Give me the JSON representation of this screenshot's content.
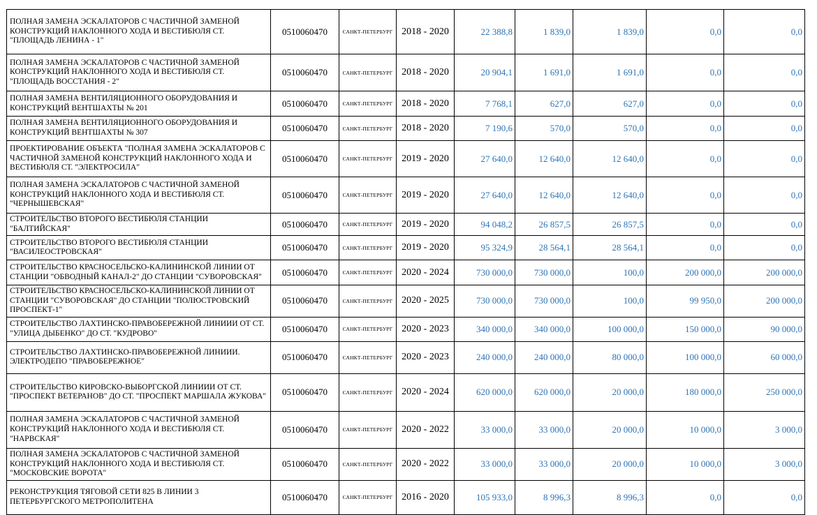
{
  "table": {
    "number_color": "#2E74B5",
    "rows": [
      {
        "name": "ПОЛНАЯ ЗАМЕНА ЭСКАЛАТОРОВ С ЧАСТИЧНОЙ ЗАМЕНОЙ КОНСТРУКЦИЙ НАКЛОННОГО ХОДА И ВЕСТИБЮЛЯ СТ. \"ПЛОЩАДЬ ЛЕНИНА - 1\"",
        "code": "0510060470",
        "city": "САНКТ-ПЕТЕРБУРГ",
        "years": "2018 - 2020",
        "values": [
          "22 388,8",
          "1 839,0",
          "1 839,0",
          "0,0",
          "0,0"
        ]
      },
      {
        "name": "ПОЛНАЯ ЗАМЕНА ЭСКАЛАТОРОВ С ЧАСТИЧНОЙ ЗАМЕНОЙ КОНСТРУКЦИЙ НАКЛОННОГО ХОДА И ВЕСТИБЮЛЯ СТ. \"ПЛОЩАДЬ ВОССТАНИЯ - 2\"",
        "code": "0510060470",
        "city": "САНКТ-ПЕТЕРБУРГ",
        "years": "2018 - 2020",
        "values": [
          "20 904,1",
          "1 691,0",
          "1 691,0",
          "0,0",
          "0,0"
        ]
      },
      {
        "name": "ПОЛНАЯ ЗАМЕНА ВЕНТИЛЯЦИОННОГО ОБОРУДОВАНИЯ И КОНСТРУКЦИЙ ВЕНТШАХТЫ № 201",
        "code": "0510060470",
        "city": "САНКТ-ПЕТЕРБУРГ",
        "years": "2018 - 2020",
        "values": [
          "7 768,1",
          "627,0",
          "627,0",
          "0,0",
          "0,0"
        ]
      },
      {
        "name": "ПОЛНАЯ ЗАМЕНА ВЕНТИЛЯЦИОННОГО ОБОРУДОВАНИЯ И КОНСТРУКЦИЙ ВЕНТШАХТЫ № 307",
        "code": "0510060470",
        "city": "САНКТ-ПЕТЕРБУРГ",
        "years": "2018 - 2020",
        "values": [
          "7 190,6",
          "570,0",
          "570,0",
          "0,0",
          "0,0"
        ]
      },
      {
        "name": "ПРОЕКТИРОВАНИЕ ОБЪЕКТА \"ПОЛНАЯ ЗАМЕНА ЭСКАЛАТОРОВ С ЧАСТИЧНОЙ ЗАМЕНОЙ КОНСТРУКЦИЙ НАКЛОННОГО ХОДА И ВЕСТИБЮЛЯ СТ. \"ЭЛЕКТРОСИЛА\"",
        "code": "0510060470",
        "city": "САНКТ-ПЕТЕРБУРГ",
        "years": "2019 - 2020",
        "values": [
          "27 640,0",
          "12 640,0",
          "12 640,0",
          "0,0",
          "0,0"
        ]
      },
      {
        "name": "ПОЛНАЯ ЗАМЕНА ЭСКАЛАТОРОВ С ЧАСТИЧНОЙ ЗАМЕНОЙ КОНСТРУКЦИЙ НАКЛОННОГО ХОДА И ВЕСТИБЮЛЯ СТ. \"ЧЕРНЫШЕВСКАЯ\"",
        "code": "0510060470",
        "city": "САНКТ-ПЕТЕРБУРГ",
        "years": "2019 - 2020",
        "values": [
          "27 640,0",
          "12 640,0",
          "12 640,0",
          "0,0",
          "0,0"
        ]
      },
      {
        "name": "СТРОИТЕЛЬСТВО ВТОРОГО ВЕСТИБЮЛЯ СТАНЦИИ \"БАЛТИЙСКАЯ\"",
        "code": "0510060470",
        "city": "САНКТ-ПЕТЕРБУРГ",
        "years": "2019 - 2020",
        "values": [
          "94 048,2",
          "26 857,5",
          "26 857,5",
          "0,0",
          "0,0"
        ]
      },
      {
        "name": "СТРОИТЕЛЬСТВО ВТОРОГО ВЕСТИБЮЛЯ СТАНЦИИ \"ВАСИЛЕОСТРОВСКАЯ\"",
        "code": "0510060470",
        "city": "САНКТ-ПЕТЕРБУРГ",
        "years": "2019 - 2020",
        "values": [
          "95 324,9",
          "28 564,1",
          "28 564,1",
          "0,0",
          "0,0"
        ]
      },
      {
        "name": "СТРОИТЕЛЬСТВО КРАСНОСЕЛЬСКО-КАЛИНИНСКОЙ ЛИНИИ ОТ СТАНЦИИ \"ОБВОДНЫЙ КАНАЛ-2\" ДО СТАНЦИИ \"СУВОРОВСКАЯ\"",
        "code": "0510060470",
        "city": "САНКТ-ПЕТЕРБУРГ",
        "years": "2020 - 2024",
        "values": [
          "730 000,0",
          "730 000,0",
          "100,0",
          "200 000,0",
          "200 000,0"
        ]
      },
      {
        "name": "СТРОИТЕЛЬСТВО КРАСНОСЕЛЬСКО-КАЛИНИНСКОЙ ЛИНИИ ОТ СТАНЦИИ \"СУВОРОВСКАЯ\" ДО СТАНЦИИ \"ПОЛЮСТРОВСКИЙ ПРОСПЕКТ-1\"",
        "code": "0510060470",
        "city": "САНКТ-ПЕТЕРБУРГ",
        "years": "2020 - 2025",
        "values": [
          "730 000,0",
          "730 000,0",
          "100,0",
          "99 950,0",
          "200 000,0"
        ]
      },
      {
        "name": "СТРОИТЕЛЬСТВО ЛАХТИНСКО-ПРАВОБЕРЕЖНОЙ ЛИНИИИ ОТ СТ. \"УЛИЦА ДЫБЕНКО\" ДО СТ. \"КУДРОВО\"",
        "code": "0510060470",
        "city": "САНКТ-ПЕТЕРБУРГ",
        "years": "2020 - 2023",
        "values": [
          "340 000,0",
          "340 000,0",
          "100 000,0",
          "150 000,0",
          "90 000,0"
        ]
      },
      {
        "name": "СТРОИТЕЛЬСТВО ЛАХТИНСКО-ПРАВОБЕРЕЖНОЙ ЛИНИИИ. ЭЛЕКТРОДЕПО \"ПРАВОБЕРЕЖНОЕ\"",
        "code": "0510060470",
        "city": "САНКТ-ПЕТЕРБУРГ",
        "years": "2020 - 2023",
        "values": [
          "240 000,0",
          "240 000,0",
          "80 000,0",
          "100 000,0",
          "60 000,0"
        ]
      },
      {
        "name": "СТРОИТЕЛЬСТВО КИРОВСКО-ВЫБОРГСКОЙ ЛИНИИИ ОТ СТ. \"ПРОСПЕКТ ВЕТЕРАНОВ\" ДО СТ. \"ПРОСПЕКТ МАРШАЛА ЖУКОВА\"",
        "code": "0510060470",
        "city": "САНКТ-ПЕТЕРБУРГ",
        "years": "2020 - 2024",
        "values": [
          "620 000,0",
          "620 000,0",
          "20 000,0",
          "180 000,0",
          "250 000,0"
        ]
      },
      {
        "name": "ПОЛНАЯ ЗАМЕНА ЭСКАЛАТОРОВ С ЧАСТИЧНОЙ ЗАМЕНОЙ КОНСТРУКЦИЙ НАКЛОННОГО ХОДА И ВЕСТИБЮЛЯ СТ. \"НАРВСКАЯ\"",
        "code": "0510060470",
        "city": "САНКТ-ПЕТЕРБУРГ",
        "years": "2020 - 2022",
        "values": [
          "33 000,0",
          "33 000,0",
          "20 000,0",
          "10 000,0",
          "3 000,0"
        ]
      },
      {
        "name": "ПОЛНАЯ ЗАМЕНА ЭСКАЛАТОРОВ С ЧАСТИЧНОЙ ЗАМЕНОЙ КОНСТРУКЦИЙ НАКЛОННОГО ХОДА И ВЕСТИБЮЛЯ СТ. \"МОСКОВСКИЕ ВОРОТА\"",
        "code": "0510060470",
        "city": "САНКТ-ПЕТЕРБУРГ",
        "years": "2020 - 2022",
        "values": [
          "33 000,0",
          "33 000,0",
          "20 000,0",
          "10 000,0",
          "3 000,0"
        ]
      },
      {
        "name": "РЕКОНСТРУКЦИЯ ТЯГОВОЙ СЕТИ 825 В ЛИНИИ 3 ПЕТЕРБУРГСКОГО МЕТРОПОЛИТЕНА",
        "code": "0510060470",
        "city": "САНКТ-ПЕТЕРБУРГ",
        "years": "2016 - 2020",
        "values": [
          "105 933,0",
          "8 996,3",
          "8 996,3",
          "0,0",
          "0,0"
        ]
      }
    ]
  }
}
